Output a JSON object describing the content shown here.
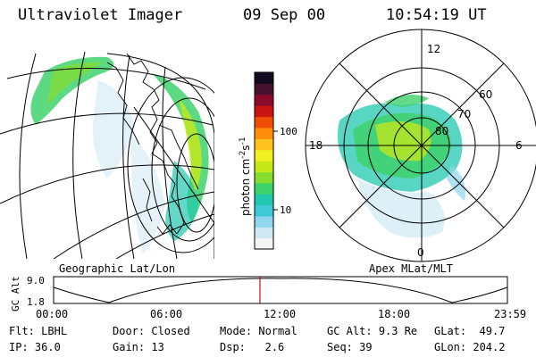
{
  "header": {
    "instrument": "Ultraviolet Imager",
    "date": "09 Sep 00",
    "time": "10:54:19 UT"
  },
  "colorbar": {
    "unit": "photon cm",
    "exp1": "-2",
    "unit_s": "s",
    "exp2": "-1",
    "tick_100": "100",
    "tick_10": "10",
    "colors": [
      "#f4f4f4",
      "#cfe9f4",
      "#8fd6ee",
      "#3fc9d6",
      "#22c7b0",
      "#3ed26d",
      "#86dd2e",
      "#c7e818",
      "#f2f01e",
      "#ffc21c",
      "#ff8c0a",
      "#f04d06",
      "#c9140f",
      "#8c0b2a",
      "#48112e",
      "#140a20"
    ]
  },
  "map_left": {
    "label": "Geographic Lat/Lon"
  },
  "polar": {
    "label": "Apex MLat/MLT",
    "ring_labels": [
      "60",
      "70",
      "80"
    ],
    "mlt_labels": {
      "top": "12",
      "right": "6",
      "bottom": "0",
      "left": "18"
    }
  },
  "timeline": {
    "ylabel": "GC Alt",
    "y_ticks": [
      "9.0",
      "1.8"
    ],
    "x_ticks": [
      "00:00",
      "06:00",
      "12:00",
      "18:00",
      "23:59"
    ],
    "current_marker": "10:54"
  },
  "info": {
    "flt_label": "Flt:",
    "flt_value": "LBHL",
    "ip_label": "IP:",
    "ip_value": "36.0",
    "door_label": "Door:",
    "door_value": "Closed",
    "gain_label": "Gain:",
    "gain_value": "13",
    "mode_label": "Mode:",
    "mode_value": "Normal",
    "dsp_label": "Dsp:",
    "dsp_value": "2.6",
    "gcalt_label": "GC Alt:",
    "gcalt_value": "9.3 Re",
    "seq_label": "Seq:",
    "seq_value": "39",
    "glat_label": "GLat:",
    "glat_value": "49.7",
    "glon_label": "GLon:",
    "glon_value": "204.2"
  }
}
